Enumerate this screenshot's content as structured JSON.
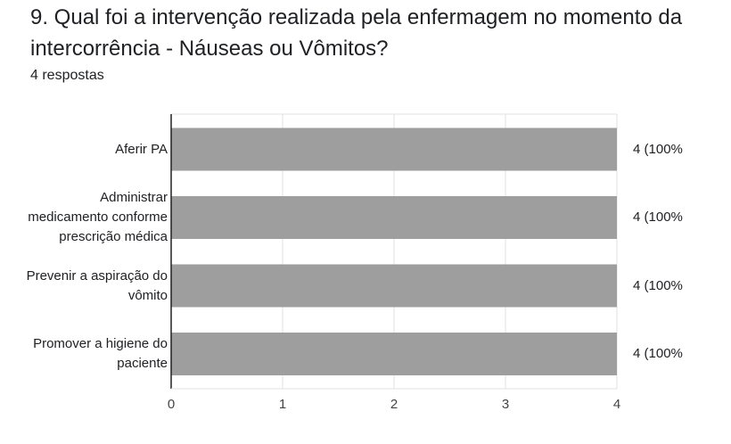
{
  "question": {
    "title": "9. Qual foi a intervenção realizada pela enfermagem no momento da intercorrência - Náuseas ou Vômitos?",
    "response_count": "4 respostas"
  },
  "chart_data": {
    "type": "bar",
    "orientation": "horizontal",
    "categories": [
      [
        "Aferir PA"
      ],
      [
        "Administrar",
        "medicamento conforme",
        "prescrição médica"
      ],
      [
        "Prevenir a aspiração do",
        "vômito"
      ],
      [
        "Promover a higiene do",
        "paciente"
      ]
    ],
    "values": [
      4,
      4,
      4,
      4
    ],
    "data_labels": [
      "4 (100%",
      "4 (100%",
      "4 (100%",
      "4 (100%"
    ],
    "x_ticks": [
      "0",
      "1",
      "2",
      "3",
      "4"
    ],
    "xlim": [
      0,
      4
    ],
    "grid": true,
    "colors": {
      "bar": "#9e9e9e",
      "grid": "#e0e0e0",
      "axis": "#202124"
    }
  }
}
